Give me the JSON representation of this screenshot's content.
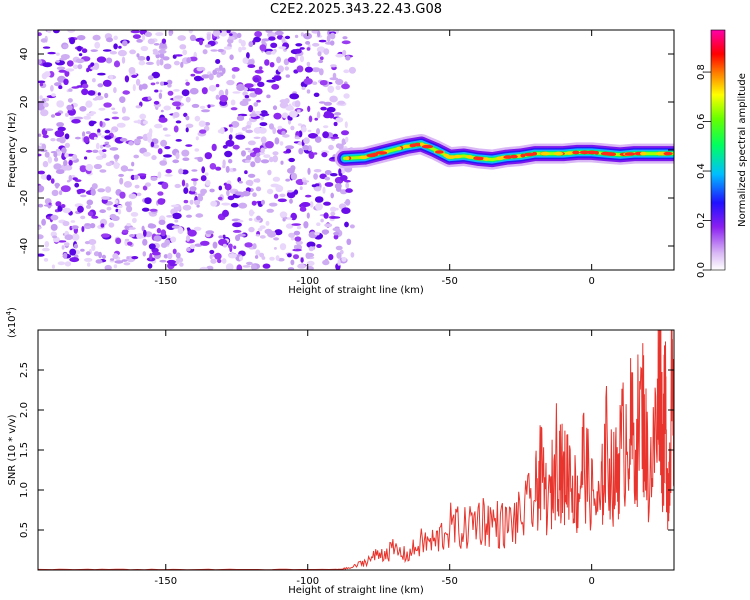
{
  "title": "C2E2.2025.343.22.43.G08",
  "chart_data": [
    {
      "type": "heatmap",
      "xlabel": "Height of straight line (km)",
      "ylabel": "Frequency (Hz)",
      "xlim": [
        -195,
        29
      ],
      "ylim": [
        -50,
        50
      ],
      "xticks": [
        -150,
        -100,
        -50,
        0
      ],
      "yticks": [
        -40,
        -20,
        0,
        20,
        40
      ],
      "colorbar": {
        "label": "Normalized spectral amplitude",
        "range": [
          0.0,
          0.97
        ],
        "ticks": [
          "0.0",
          "0.2",
          "0.4",
          "0.6",
          "0.8"
        ],
        "colormap": "white-violet-blue-cyan-green-yellow-red-magenta"
      },
      "noise_region_x": [
        -195,
        -87
      ],
      "signal_trace": {
        "x": [
          -87,
          -80,
          -75,
          -70,
          -65,
          -60,
          -55,
          -50,
          -45,
          -40,
          -35,
          -30,
          -25,
          -20,
          -15,
          -10,
          -5,
          0,
          5,
          10,
          15,
          20,
          25,
          29
        ],
        "freq_hz": [
          -3.5,
          -3.0,
          -1.5,
          0.0,
          1.5,
          2.5,
          0.0,
          -3.0,
          -2.5,
          -3.5,
          -4.0,
          -3.0,
          -2.5,
          -1.5,
          -1.5,
          -1.5,
          -1.0,
          -1.0,
          -1.5,
          -2.0,
          -1.5,
          -1.5,
          -1.5,
          -1.5
        ]
      }
    },
    {
      "type": "line",
      "xlabel": "Height of straight line (km)",
      "ylabel": "SNR (10 * v/v)",
      "scale_label": "(x10",
      "scale_exponent": "4",
      "xlim": [
        -195,
        29
      ],
      "ylim": [
        0,
        30000
      ],
      "xticks": [
        -150,
        -100,
        -50,
        0
      ],
      "ytick_values": [
        5000,
        10000,
        15000,
        20000,
        25000
      ],
      "ytick_labels": [
        "0.5",
        "1.0",
        "1.5",
        "2.0",
        "2.5"
      ],
      "color": "#e8342c",
      "series": [
        {
          "x": [
            -195,
            -180,
            -165,
            -150,
            -135,
            -120,
            -105,
            -90,
            -85,
            -80,
            -75,
            -70,
            -65,
            -60,
            -55,
            -50,
            -45,
            -40,
            -35,
            -30,
            -25,
            -20,
            -18,
            -15,
            -12,
            -10,
            -8,
            -5,
            -3,
            0,
            3,
            5,
            8,
            10,
            13,
            15,
            18,
            20,
            23,
            24,
            25,
            26,
            27,
            28,
            29
          ],
          "values": [
            80,
            60,
            70,
            60,
            60,
            60,
            60,
            60,
            250,
            1000,
            2000,
            2500,
            1800,
            3400,
            3500,
            5500,
            5000,
            6500,
            6000,
            5500,
            6500,
            9000,
            12000,
            8000,
            15500,
            11000,
            13000,
            8500,
            14000,
            9500,
            7500,
            15500,
            11000,
            14500,
            18000,
            16000,
            20000,
            12000,
            17000,
            29500,
            15000,
            20000,
            8000,
            22000,
            17000
          ]
        }
      ]
    }
  ]
}
